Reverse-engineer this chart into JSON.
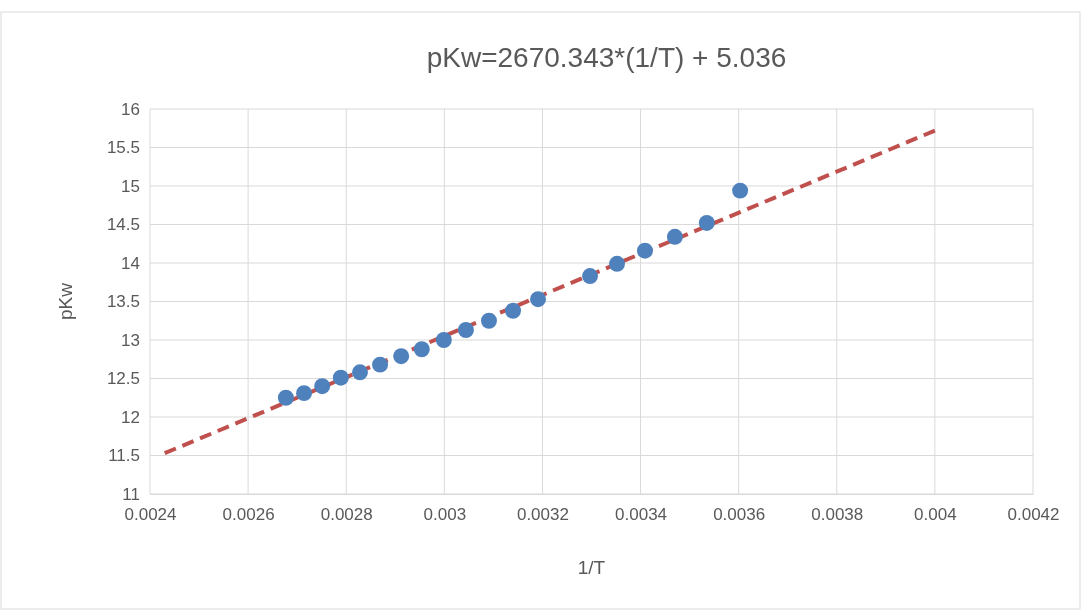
{
  "chart_data": {
    "type": "scatter",
    "title": "pKw=2670.343*(1/T) + 5.036",
    "xlabel": "1/T",
    "ylabel": "pKw",
    "xlim": [
      0.0024,
      0.0042
    ],
    "xticks": [
      0.0024,
      0.0026,
      0.0028,
      0.003,
      0.0032,
      0.0034,
      0.0036,
      0.0038,
      0.004,
      0.0042
    ],
    "ylim": [
      11,
      16
    ],
    "yticks": [
      11,
      11.5,
      12,
      12.5,
      13,
      13.5,
      14,
      14.5,
      15,
      15.5,
      16
    ],
    "grid": true,
    "marker": "circle",
    "series": [
      {
        "color": "#4f81bd",
        "x": [
          0.002677,
          0.002714,
          0.002751,
          0.002789,
          0.002828,
          0.002869,
          0.002912,
          0.002954,
          0.002999,
          0.003044,
          0.003091,
          0.00314,
          0.003191,
          0.003297,
          0.003352,
          0.003409,
          0.00347,
          0.003535,
          0.003603
        ],
        "values": [
          12.25,
          12.31,
          12.4,
          12.51,
          12.58,
          12.68,
          12.79,
          12.88,
          13.0,
          13.13,
          13.25,
          13.38,
          13.53,
          13.83,
          13.99,
          14.16,
          14.34,
          14.52,
          14.94
        ]
      },
      {
        "type": "line",
        "color": "#c0504d",
        "line_style": "dashed",
        "marker": "none",
        "x": [
          0.00243,
          0.004
        ],
        "values": [
          11.53,
          15.72
        ]
      }
    ]
  }
}
